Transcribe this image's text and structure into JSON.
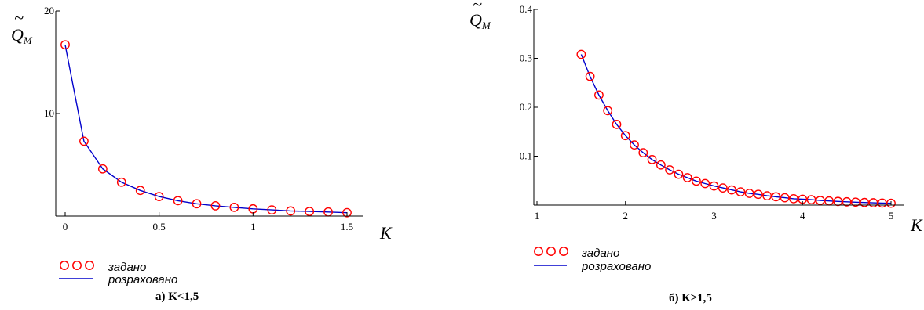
{
  "chart_data": [
    {
      "type": "line",
      "caption": "а) K<1,5",
      "xlabel": "K",
      "ylabel_main": "Q",
      "ylabel_sub": "M",
      "xlim": [
        -0.02,
        1.6
      ],
      "ylim": [
        0,
        20
      ],
      "x_ticks": [
        "0",
        "0.5",
        "1",
        "1.5"
      ],
      "x_tick_values": [
        0,
        0.5,
        1,
        1.5
      ],
      "y_ticks": [
        "10",
        "20"
      ],
      "y_tick_values": [
        10,
        20
      ],
      "series": [
        {
          "name": "задано",
          "style": "markers",
          "color": "#ff0000",
          "x": [
            0.0,
            0.1,
            0.2,
            0.3,
            0.4,
            0.5,
            0.6,
            0.7,
            0.8,
            0.9,
            1.0,
            1.1,
            1.2,
            1.3,
            1.4,
            1.5
          ],
          "y": [
            16.7,
            7.3,
            4.6,
            3.3,
            2.5,
            1.9,
            1.5,
            1.2,
            1.0,
            0.85,
            0.7,
            0.6,
            0.5,
            0.45,
            0.4,
            0.33
          ]
        },
        {
          "name": "розраховано",
          "style": "line",
          "color": "#0000cc",
          "x": [
            0.0,
            0.1,
            0.2,
            0.3,
            0.4,
            0.5,
            0.6,
            0.7,
            0.8,
            0.9,
            1.0,
            1.1,
            1.2,
            1.3,
            1.4,
            1.5
          ],
          "y": [
            16.7,
            7.3,
            4.6,
            3.3,
            2.5,
            1.9,
            1.5,
            1.2,
            1.0,
            0.85,
            0.7,
            0.6,
            0.5,
            0.45,
            0.4,
            0.33
          ]
        }
      ]
    },
    {
      "type": "line",
      "caption": "б) K≥1,5",
      "xlabel": "K",
      "ylabel_main": "Q",
      "ylabel_sub": "M",
      "xlim": [
        1,
        5.1
      ],
      "ylim": [
        0,
        0.4
      ],
      "x_ticks": [
        "1",
        "2",
        "3",
        "4",
        "5"
      ],
      "x_tick_values": [
        1,
        2,
        3,
        4,
        5
      ],
      "y_ticks": [
        "0.1",
        "0.2",
        "0.3",
        "0.4"
      ],
      "y_tick_values": [
        0.1,
        0.2,
        0.3,
        0.4
      ],
      "series": [
        {
          "name": "задано",
          "style": "markers",
          "color": "#ff0000",
          "x": [
            1.5,
            1.6,
            1.7,
            1.8,
            1.9,
            2.0,
            2.1,
            2.2,
            2.3,
            2.4,
            2.5,
            2.6,
            2.7,
            2.8,
            2.9,
            3.0,
            3.1,
            3.2,
            3.3,
            3.4,
            3.5,
            3.6,
            3.7,
            3.8,
            3.9,
            4.0,
            4.1,
            4.2,
            4.3,
            4.4,
            4.5,
            4.6,
            4.7,
            4.8,
            4.9,
            5.0
          ],
          "y": [
            0.308,
            0.263,
            0.225,
            0.193,
            0.165,
            0.142,
            0.123,
            0.107,
            0.093,
            0.082,
            0.072,
            0.063,
            0.056,
            0.049,
            0.044,
            0.039,
            0.035,
            0.031,
            0.027,
            0.024,
            0.022,
            0.019,
            0.017,
            0.015,
            0.013,
            0.012,
            0.011,
            0.0095,
            0.0085,
            0.0075,
            0.0067,
            0.006,
            0.0053,
            0.0047,
            0.0042,
            0.0038
          ]
        },
        {
          "name": "розраховано",
          "style": "line",
          "color": "#0000cc",
          "x": [
            1.5,
            1.6,
            1.7,
            1.8,
            1.9,
            2.0,
            2.1,
            2.2,
            2.3,
            2.4,
            2.5,
            2.6,
            2.7,
            2.8,
            2.9,
            3.0,
            3.1,
            3.2,
            3.3,
            3.4,
            3.5,
            3.6,
            3.7,
            3.8,
            3.9,
            4.0,
            4.1,
            4.2,
            4.3,
            4.4,
            4.5,
            4.6,
            4.7,
            4.8,
            4.9,
            5.0
          ],
          "y": [
            0.308,
            0.263,
            0.225,
            0.193,
            0.165,
            0.142,
            0.123,
            0.107,
            0.093,
            0.082,
            0.072,
            0.063,
            0.056,
            0.049,
            0.044,
            0.039,
            0.035,
            0.031,
            0.027,
            0.024,
            0.022,
            0.019,
            0.017,
            0.015,
            0.013,
            0.012,
            0.011,
            0.0095,
            0.0085,
            0.0075,
            0.0067,
            0.006,
            0.0053,
            0.0047,
            0.0042,
            0.0038
          ]
        }
      ]
    }
  ]
}
